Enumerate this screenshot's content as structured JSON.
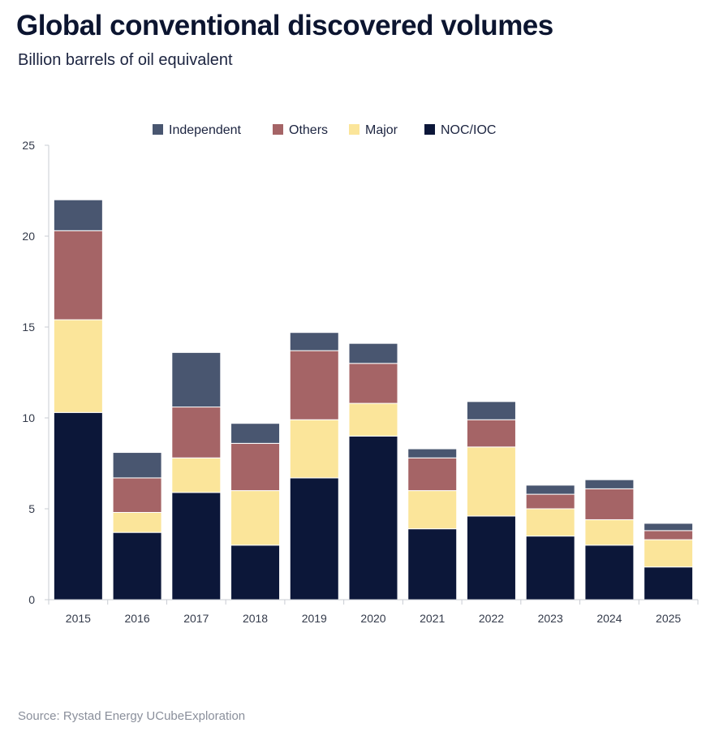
{
  "header": {
    "title": "Global conventional discovered volumes",
    "subtitle": "Billion barrels of oil equivalent"
  },
  "footer": {
    "source": "Source: Rystad Energy UCubeExploration"
  },
  "chart_data": {
    "type": "bar",
    "stacked": true,
    "title": "Global conventional discovered volumes",
    "subtitle": "Billion barrels of oil equivalent",
    "xlabel": "",
    "ylabel": "",
    "ylim": [
      0,
      25
    ],
    "yticks": [
      0,
      5,
      10,
      15,
      20,
      25
    ],
    "grid": false,
    "legend_position": "top",
    "categories": [
      "2015",
      "2016",
      "2017",
      "2018",
      "2019",
      "2020",
      "2021",
      "2022",
      "2023",
      "2024",
      "2025"
    ],
    "series": [
      {
        "name": "NOC/IOC",
        "color": "#0c1739",
        "values": [
          10.3,
          3.7,
          5.9,
          3.0,
          6.7,
          9.0,
          3.9,
          4.6,
          3.5,
          3.0,
          1.8
        ]
      },
      {
        "name": "Major",
        "color": "#fbe59a",
        "values": [
          5.1,
          1.1,
          1.9,
          3.0,
          3.2,
          1.8,
          2.1,
          3.8,
          1.5,
          1.4,
          1.5
        ]
      },
      {
        "name": "Others",
        "color": "#a56466",
        "values": [
          4.9,
          1.9,
          2.8,
          2.6,
          3.8,
          2.2,
          1.8,
          1.5,
          0.8,
          1.7,
          0.5
        ]
      },
      {
        "name": "Independent",
        "color": "#495670",
        "values": [
          1.7,
          1.4,
          3.0,
          1.1,
          1.0,
          1.1,
          0.5,
          1.0,
          0.5,
          0.5,
          0.4
        ]
      }
    ],
    "legend_order": [
      "Independent",
      "Others",
      "Major",
      "NOC/IOC"
    ]
  }
}
